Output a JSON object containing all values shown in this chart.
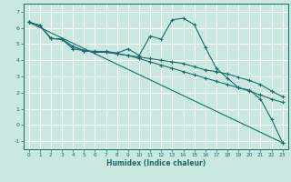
{
  "xlabel": "Humidex (Indice chaleur)",
  "xlim": [
    -0.5,
    23.5
  ],
  "ylim": [
    -1.5,
    7.5
  ],
  "yticks": [
    -1,
    0,
    1,
    2,
    3,
    4,
    5,
    6,
    7
  ],
  "xticks": [
    0,
    1,
    2,
    3,
    4,
    5,
    6,
    7,
    8,
    9,
    10,
    11,
    12,
    13,
    14,
    15,
    16,
    17,
    18,
    19,
    20,
    21,
    22,
    23
  ],
  "bg_color": "#c8e8e0",
  "grid_color": "#ffffff",
  "line_color": "#1a6b6b",
  "line1_x": [
    0,
    1,
    2,
    3,
    4,
    5,
    6,
    7,
    8,
    9,
    10,
    11,
    12,
    13,
    14,
    15,
    16,
    17,
    18,
    19,
    20,
    21,
    22,
    23
  ],
  "line1_y": [
    6.35,
    6.15,
    5.35,
    5.3,
    4.7,
    4.6,
    4.55,
    4.55,
    4.45,
    4.7,
    4.3,
    5.5,
    5.3,
    6.5,
    6.6,
    6.2,
    4.8,
    3.5,
    2.9,
    2.3,
    2.15,
    1.6,
    0.35,
    -1.1
  ],
  "line2_x": [
    0,
    1,
    2,
    3,
    4,
    5,
    6,
    7,
    8,
    9,
    10,
    11,
    12,
    13,
    14,
    15,
    16,
    17,
    18,
    19,
    20,
    21,
    22,
    23
  ],
  "line2_y": [
    6.35,
    6.15,
    5.35,
    5.3,
    4.85,
    4.6,
    4.5,
    4.5,
    4.4,
    4.3,
    4.1,
    3.9,
    3.7,
    3.5,
    3.3,
    3.1,
    2.9,
    2.7,
    2.5,
    2.3,
    2.1,
    1.85,
    1.6,
    1.4
  ],
  "line3_x": [
    0,
    1,
    2,
    3,
    4,
    5,
    6,
    7,
    8,
    9,
    10,
    11,
    12,
    13,
    14,
    15,
    16,
    17,
    18,
    19,
    20,
    21,
    22,
    23
  ],
  "line3_y": [
    6.35,
    6.15,
    5.35,
    5.3,
    4.85,
    4.6,
    4.5,
    4.5,
    4.4,
    4.3,
    4.2,
    4.1,
    4.0,
    3.9,
    3.8,
    3.6,
    3.4,
    3.3,
    3.15,
    2.95,
    2.75,
    2.5,
    2.1,
    1.75
  ],
  "line4_x": [
    0,
    23
  ],
  "line4_y": [
    6.35,
    -1.1
  ]
}
